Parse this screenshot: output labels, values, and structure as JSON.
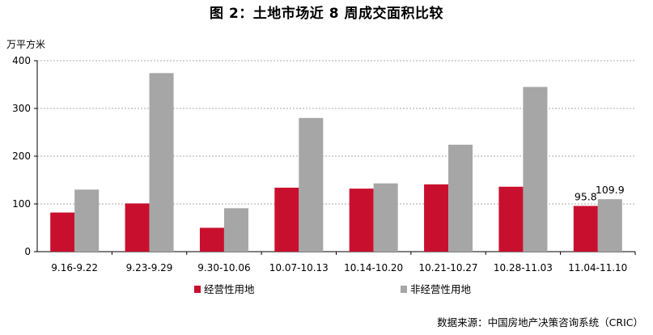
{
  "chart_data": {
    "type": "bar",
    "title": "图 2：土地市场近 8 周成交面积比较",
    "ylabel": "万平方米",
    "ylim": [
      0,
      400
    ],
    "yticks": [
      0,
      100,
      200,
      300,
      400
    ],
    "grid": true,
    "legend_position": "bottom",
    "categories": [
      "9.16-9.22",
      "9.23-9.29",
      "9.30-10.06",
      "10.07-10.13",
      "10.14-10.20",
      "10.21-10.27",
      "10.28-11.03",
      "11.04-11.10"
    ],
    "series": [
      {
        "name": "经营性用地",
        "color": "#c8102e",
        "values": [
          82,
          101,
          50,
          134,
          132,
          141,
          136,
          95.8
        ]
      },
      {
        "name": "非经营性用地",
        "color": "#a6a6a6",
        "values": [
          130,
          374,
          91,
          280,
          143,
          224,
          345,
          109.9
        ]
      }
    ],
    "data_labels": [
      {
        "series": 0,
        "index": 7,
        "text": "95.8"
      },
      {
        "series": 1,
        "index": 7,
        "text": "109.9"
      }
    ],
    "source": "数据来源：中国房地产决策咨询系统（CRIC）"
  }
}
